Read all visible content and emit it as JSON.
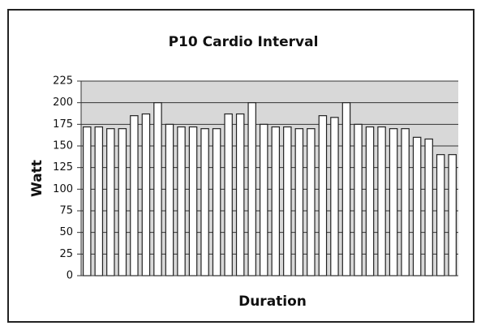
{
  "chart_data": {
    "type": "bar",
    "title": "P10 Cardio Interval",
    "x_label": "Duration",
    "y_label": "Watt",
    "values": [
      172,
      172,
      170,
      170,
      185,
      187,
      200,
      175,
      172,
      172,
      170,
      170,
      187,
      187,
      200,
      175,
      172,
      172,
      170,
      170,
      185,
      183,
      200,
      175,
      172,
      172,
      170,
      170,
      160,
      158,
      140,
      140
    ],
    "color": "#ffffff",
    "ylim": [
      0,
      225
    ],
    "yticks": [
      0,
      25,
      50,
      75,
      100,
      125,
      150,
      175,
      200,
      225
    ],
    "grid": true
  }
}
